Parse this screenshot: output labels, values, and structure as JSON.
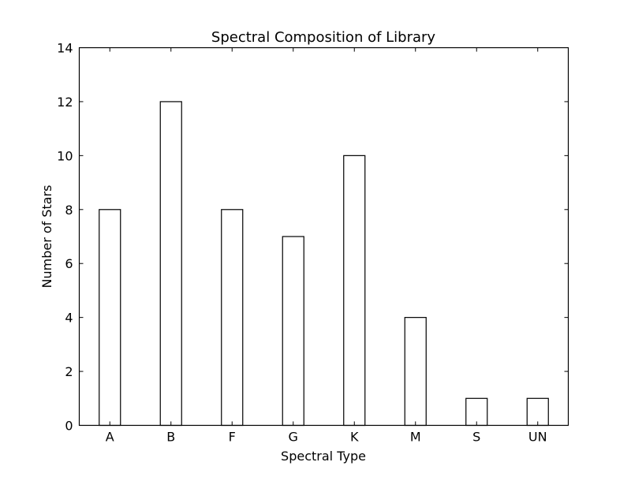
{
  "chart_data": {
    "type": "bar",
    "title": "Spectral Composition of Library",
    "xlabel": "Spectral Type",
    "ylabel": "Number of Stars",
    "categories": [
      "A",
      "B",
      "F",
      "G",
      "K",
      "M",
      "S",
      "UN"
    ],
    "values": [
      8,
      12,
      8,
      7,
      10,
      4,
      1,
      1
    ],
    "ylim": [
      0,
      14
    ],
    "yticks": [
      0,
      2,
      4,
      6,
      8,
      10,
      12,
      14
    ],
    "grid": false,
    "legend": "none",
    "bar_fill": "#ffffff",
    "bar_edge": "#000000"
  }
}
